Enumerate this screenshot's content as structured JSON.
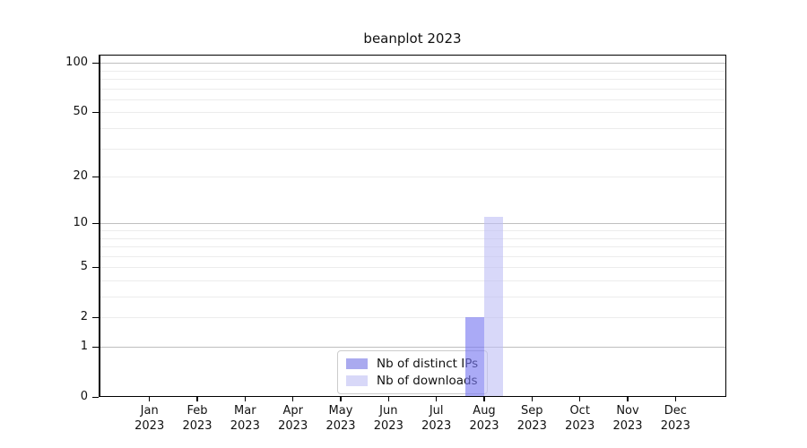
{
  "figure": {
    "title": "beanplot 2023"
  },
  "chart_data": {
    "type": "bar",
    "title": "beanplot 2023",
    "categories": [
      {
        "month": "Jan",
        "year": "2023"
      },
      {
        "month": "Feb",
        "year": "2023"
      },
      {
        "month": "Mar",
        "year": "2023"
      },
      {
        "month": "Apr",
        "year": "2023"
      },
      {
        "month": "May",
        "year": "2023"
      },
      {
        "month": "Jun",
        "year": "2023"
      },
      {
        "month": "Jul",
        "year": "2023"
      },
      {
        "month": "Aug",
        "year": "2023"
      },
      {
        "month": "Sep",
        "year": "2023"
      },
      {
        "month": "Oct",
        "year": "2023"
      },
      {
        "month": "Nov",
        "year": "2023"
      },
      {
        "month": "Dec",
        "year": "2023"
      }
    ],
    "series": [
      {
        "name": "Nb of distinct IPs",
        "color": "rgba(120,120,240,0.63)",
        "legend_color": "#aaaaef",
        "values": [
          0,
          0,
          0,
          0,
          0,
          0,
          0,
          2,
          0,
          0,
          0,
          0
        ]
      },
      {
        "name": "Nb of downloads",
        "color": "rgba(190,190,245,0.6)",
        "legend_color": "#d8d8f8",
        "values": [
          0,
          0,
          0,
          0,
          0,
          0,
          0,
          11,
          0,
          0,
          0,
          0
        ]
      }
    ],
    "xlabel": "",
    "ylabel": "",
    "yscale": "log1p",
    "ylim": [
      0,
      112
    ],
    "y_major_ticks": [
      0,
      1,
      2,
      5,
      10,
      20,
      50,
      100
    ],
    "y_minor_ticks": [
      3,
      4,
      6,
      7,
      8,
      9,
      30,
      40,
      60,
      70,
      80,
      90
    ],
    "y_emphasized_gridlines": [
      1,
      10,
      100
    ],
    "grid": true,
    "legend_position": "lower center",
    "colors": {
      "grid_minor": "#ececec",
      "grid_major": "#bfbfbf",
      "spine": "#000000",
      "legend_border": "#cccccc"
    }
  }
}
